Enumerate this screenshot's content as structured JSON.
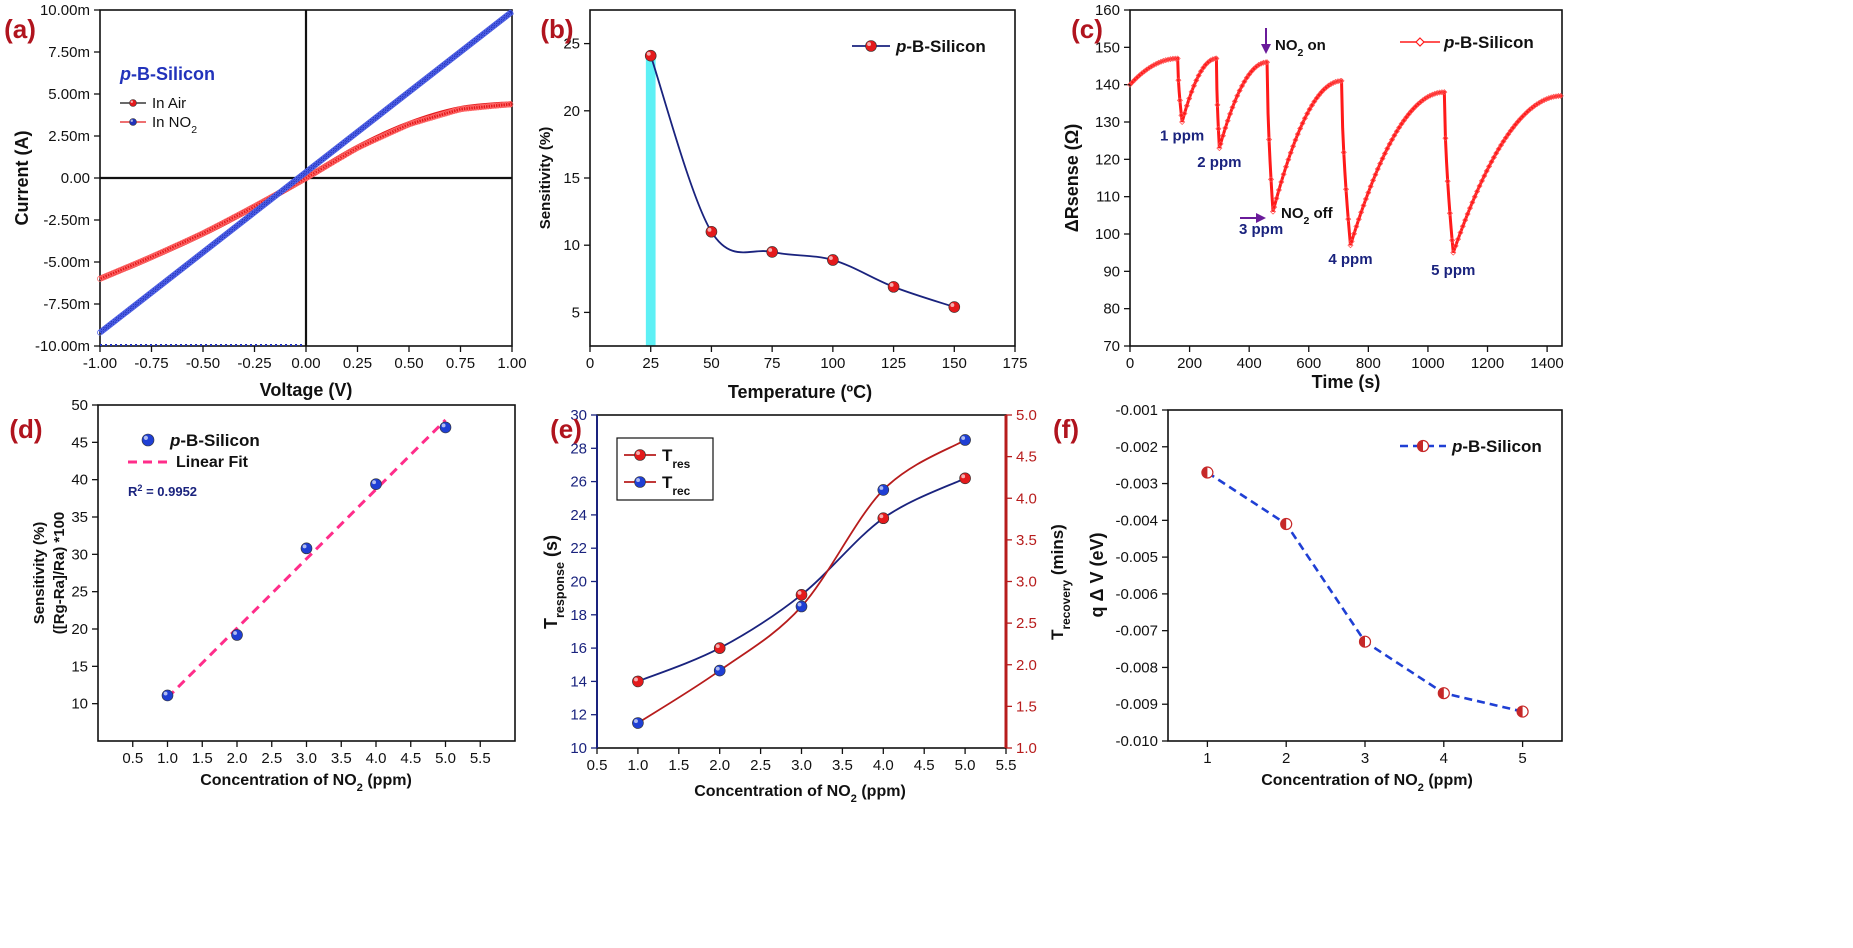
{
  "chart_data": [
    {
      "panel": "(a)",
      "type": "line",
      "xlabel": "Voltage (V)",
      "ylabel": "Current (A)",
      "xlim": [
        -1.0,
        1.0
      ],
      "ylim": [
        -10.0,
        10.0
      ],
      "xticks": [
        "-1.00",
        "-0.75",
        "-0.50",
        "-0.25",
        "0.00",
        "0.25",
        "0.50",
        "0.75",
        "1.00"
      ],
      "yticks": [
        "-10.00m",
        "-7.50m",
        "-5.00m",
        "-2.50m",
        "0.00",
        "2.50m",
        "5.00m",
        "7.50m",
        "10.00m"
      ],
      "annotation": "p-B-Silicon",
      "series": [
        {
          "name": "In Air",
          "color": "#e41a1c",
          "x": [
            -1.0,
            -0.75,
            -0.5,
            -0.25,
            0.0,
            0.25,
            0.5,
            0.75,
            1.0
          ],
          "y": [
            -6.0,
            -4.7,
            -3.3,
            -1.7,
            0.0,
            1.8,
            3.2,
            4.1,
            4.4
          ]
        },
        {
          "name": "In NO2",
          "color": "#2233bb",
          "x": [
            -1.0,
            1.0
          ],
          "y": [
            -9.2,
            9.9
          ]
        }
      ]
    },
    {
      "panel": "(b)",
      "type": "line",
      "xlabel": "Temperature (ºC)",
      "ylabel": "Sensitivity (%)",
      "xlim": [
        0,
        175
      ],
      "ylim": [
        2.5,
        27.5
      ],
      "legend": "p-B-Silicon",
      "highlight": {
        "from": 23,
        "to": 27,
        "color": "#5ef0f5"
      },
      "series": [
        {
          "name": "p-B-Silicon",
          "x": [
            25,
            50,
            75,
            100,
            125,
            150
          ],
          "y": [
            24.1,
            11.0,
            9.5,
            8.9,
            6.9,
            5.4
          ]
        }
      ]
    },
    {
      "panel": "(c)",
      "type": "line",
      "xlabel": "Time (s)",
      "ylabel": "ΔRsense (Ω)",
      "xlim": [
        0,
        1450
      ],
      "ylim": [
        70,
        160
      ],
      "legend": "p-B-Silicon",
      "series": [
        {
          "name": "p-B-Silicon",
          "x": [
            0,
            160,
            175,
            290,
            300,
            460,
            480,
            710,
            740,
            1055,
            1085,
            1450
          ],
          "y": [
            140,
            147,
            130,
            147,
            123,
            146,
            106,
            141,
            97,
            138,
            95,
            137
          ]
        }
      ],
      "labels": [
        {
          "text": "1 ppm",
          "x": 175,
          "y": 125
        },
        {
          "text": "2 ppm",
          "x": 300,
          "y": 118
        },
        {
          "text": "3 ppm",
          "x": 440,
          "y": 100
        },
        {
          "text": "4 ppm",
          "x": 740,
          "y": 92
        },
        {
          "text": "5 ppm",
          "x": 1085,
          "y": 89
        }
      ],
      "on_label": "NO",
      "on_label_sub": "2",
      "on_label_suffix": " on",
      "off_label": "NO",
      "off_label_sub": "2",
      "off_label_suffix": " off"
    },
    {
      "panel": "(d)",
      "type": "scatter",
      "xlabel": "Concentration of NO",
      "xlabel_sub": "2",
      "xlabel_suffix": " (ppm)",
      "ylabel_line1": "Sensitivity (%)",
      "ylabel_line2": "([Rg-Ra]/Ra) *100",
      "xlim": [
        0,
        6
      ],
      "ylim": [
        5,
        50
      ],
      "series": [
        {
          "name": "p-B-Silicon",
          "x": [
            1,
            2,
            3,
            4,
            5
          ],
          "y": [
            11.1,
            19.2,
            30.8,
            39.4,
            47.0
          ]
        },
        {
          "name": "Linear Fit",
          "x": [
            1,
            5
          ],
          "y": [
            10.8,
            48.0
          ]
        }
      ],
      "annotation": "R",
      "annotation_sup": "2",
      "annotation_suffix": "  = 0.9952"
    },
    {
      "panel": "(e)",
      "type": "line",
      "xlabel": "Concentration of NO",
      "xlabel_sub": "2",
      "xlabel_suffix": " (ppm)",
      "ylabel_left": "T",
      "ylabel_left_sub": "response",
      "ylabel_left_suffix": " (s)",
      "ylabel_right": "T",
      "ylabel_right_sub": "recovery",
      "ylabel_right_suffix": " (mins)",
      "xlim": [
        0.5,
        5.5
      ],
      "ylim_left": [
        10,
        30
      ],
      "ylim_right": [
        1.0,
        5.0
      ],
      "series": [
        {
          "name": "T",
          "sub": "res",
          "axis": "left",
          "line_color": "#1a237e",
          "marker_color": "#e41a1c",
          "x": [
            1,
            2,
            3,
            4,
            5
          ],
          "y": [
            14.0,
            16.0,
            19.2,
            23.8,
            26.2
          ]
        },
        {
          "name": "T",
          "sub": "rec",
          "axis": "right",
          "line_color": "#b71c1c",
          "marker_color": "#1f3fd4",
          "x": [
            1,
            2,
            3,
            4,
            5
          ],
          "y": [
            1.3,
            1.93,
            2.7,
            4.1,
            4.7
          ]
        }
      ]
    },
    {
      "panel": "(f)",
      "type": "line",
      "xlabel": "Concentration of NO",
      "xlabel_sub": "2",
      "xlabel_suffix": " (ppm)",
      "ylabel": "q Δ V (eV)",
      "xlim": [
        0.5,
        5.5
      ],
      "ylim": [
        -0.01,
        -0.001
      ],
      "legend": "p-B-Silicon",
      "series": [
        {
          "name": "p-B-Silicon",
          "x": [
            1,
            2,
            3,
            4,
            5
          ],
          "y": [
            -0.0027,
            -0.0041,
            -0.0073,
            -0.0087,
            -0.0092
          ]
        }
      ]
    }
  ],
  "panel_labels": [
    "(a)",
    "(b)",
    "(c)",
    "(d)",
    "(e)",
    "(f)"
  ],
  "legend_prefix": "p",
  "legend_rest": "-B-Silicon",
  "legend_air": "In Air",
  "legend_no2": "In NO",
  "legend_no2_sub": "2",
  "legend_fit": "Linear Fit",
  "colors": {
    "red": "#e41a1c",
    "blue": "#2233bb",
    "label_red": "#b0141e",
    "text_blue": "#1a237e",
    "cyan": "#5ef0f5",
    "pink": "#ff2d8a"
  }
}
